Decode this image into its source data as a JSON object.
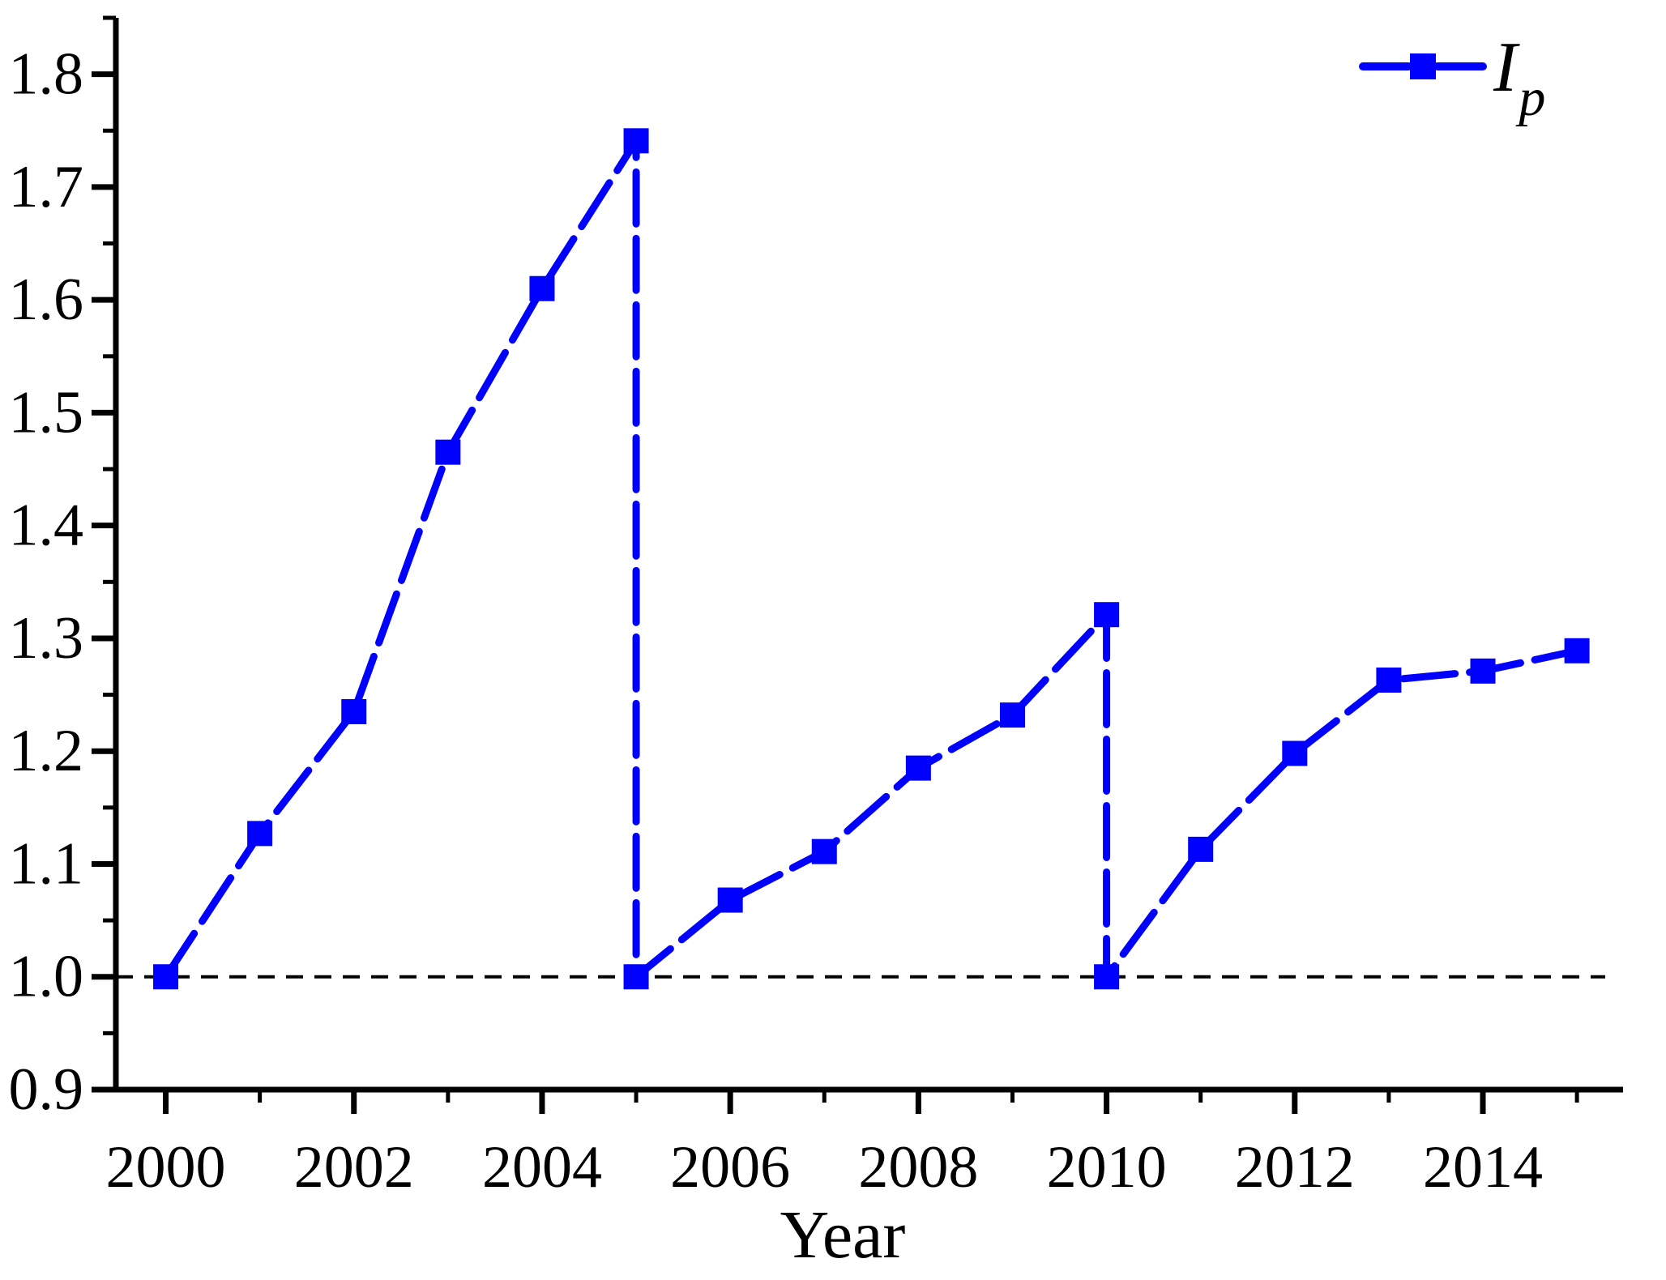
{
  "chart_data": {
    "type": "line",
    "title": "",
    "xlabel": "Year",
    "grid": false,
    "background": "#ffffff",
    "legend": {
      "position": "top-right",
      "label_main": "I",
      "label_sub": "p",
      "marker": "square",
      "color": "#0000ff"
    },
    "reference_line": {
      "y": 1.0,
      "style": "dashed",
      "color": "#000000"
    },
    "x_axis": {
      "label": "Year",
      "range": [
        1999.47,
        2015.49
      ],
      "major_ticks": [
        2000,
        2002,
        2004,
        2006,
        2008,
        2010,
        2012,
        2014
      ],
      "major_tick_labels": [
        "2000",
        "2002",
        "2004",
        "2006",
        "2008",
        "2010",
        "2012",
        "2014"
      ],
      "minor_ticks": [
        2001,
        2003,
        2005,
        2007,
        2009,
        2011,
        2013,
        2015
      ]
    },
    "y_axis": {
      "label": "",
      "range": [
        0.9,
        1.85
      ],
      "major_ticks": [
        0.9,
        1.0,
        1.1,
        1.2,
        1.3,
        1.4,
        1.5,
        1.6,
        1.7,
        1.8
      ],
      "major_tick_labels": [
        "0.9",
        "1.0",
        "1.1",
        "1.2",
        "1.3",
        "1.4",
        "1.5",
        "1.6",
        "1.7",
        "1.8"
      ],
      "minor_ticks": [
        0.95,
        1.05,
        1.15,
        1.25,
        1.35,
        1.45,
        1.55,
        1.65,
        1.75,
        1.85
      ]
    },
    "series": [
      {
        "name": "Ip",
        "color": "#0000ff",
        "marker": "square",
        "line_style": "dashed-long",
        "points": [
          [
            2000,
            1.0
          ],
          [
            2001,
            1.127
          ],
          [
            2002,
            1.235
          ],
          [
            2003,
            1.465
          ],
          [
            2004,
            1.61
          ],
          [
            2005,
            1.741
          ],
          [
            2005,
            1.0
          ],
          [
            2006,
            1.068
          ],
          [
            2007,
            1.111
          ],
          [
            2008,
            1.185
          ],
          [
            2009,
            1.232
          ],
          [
            2010,
            1.321
          ],
          [
            2010,
            1.0
          ],
          [
            2011,
            1.113
          ],
          [
            2012,
            1.198
          ],
          [
            2013,
            1.263
          ],
          [
            2014,
            1.271
          ],
          [
            2015,
            1.289
          ]
        ]
      }
    ],
    "colors": {
      "series": "#0000ff",
      "axis": "#000000",
      "background": "#ffffff"
    }
  }
}
